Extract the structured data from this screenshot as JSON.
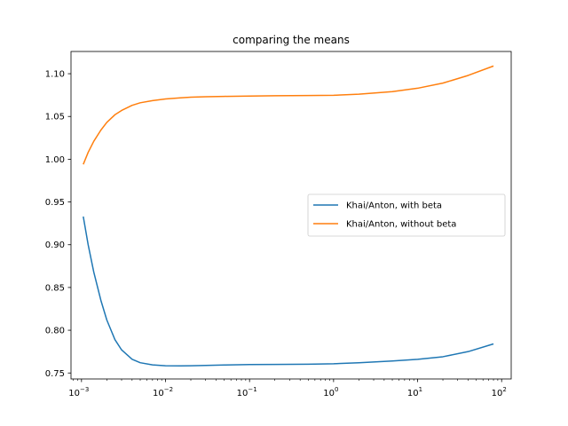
{
  "chart_data": {
    "type": "line",
    "title": "comparing the means",
    "xlabel": "",
    "ylabel": "",
    "xscale": "log",
    "xlim": [
      0.00075,
      130
    ],
    "ylim": [
      0.743,
      1.126
    ],
    "grid": false,
    "legend_position": "center-right",
    "x_ticks": [
      {
        "value": 0.001,
        "base": "10",
        "exp": "−3"
      },
      {
        "value": 0.01,
        "base": "10",
        "exp": "−2"
      },
      {
        "value": 0.1,
        "base": "10",
        "exp": "−1"
      },
      {
        "value": 1,
        "base": "10",
        "exp": "0"
      },
      {
        "value": 10,
        "base": "10",
        "exp": "1"
      },
      {
        "value": 100,
        "base": "10",
        "exp": "2"
      }
    ],
    "y_ticks": [
      {
        "value": 0.75,
        "label": "0.75"
      },
      {
        "value": 0.8,
        "label": "0.80"
      },
      {
        "value": 0.85,
        "label": "0.85"
      },
      {
        "value": 0.9,
        "label": "0.90"
      },
      {
        "value": 0.95,
        "label": "0.95"
      },
      {
        "value": 1.0,
        "label": "1.00"
      },
      {
        "value": 1.05,
        "label": "1.05"
      },
      {
        "value": 1.1,
        "label": "1.10"
      }
    ],
    "series": [
      {
        "name": "Khai/Anton, with beta",
        "color": "#1f77b4",
        "x": [
          0.00105,
          0.0012,
          0.0014,
          0.0017,
          0.002,
          0.0025,
          0.003,
          0.004,
          0.005,
          0.007,
          0.01,
          0.015,
          0.02,
          0.03,
          0.05,
          0.1,
          0.2,
          0.5,
          1,
          2,
          5,
          10,
          20,
          40,
          80
        ],
        "y": [
          0.933,
          0.9,
          0.868,
          0.835,
          0.812,
          0.789,
          0.777,
          0.766,
          0.762,
          0.7595,
          0.7585,
          0.7583,
          0.7585,
          0.7588,
          0.7593,
          0.7598,
          0.76,
          0.7603,
          0.7608,
          0.762,
          0.764,
          0.766,
          0.769,
          0.775,
          0.784
        ]
      },
      {
        "name": "Khai/Anton, without beta",
        "color": "#ff7f0e",
        "x": [
          0.00105,
          0.0012,
          0.0014,
          0.0017,
          0.002,
          0.0025,
          0.003,
          0.004,
          0.005,
          0.007,
          0.01,
          0.015,
          0.02,
          0.03,
          0.05,
          0.1,
          0.2,
          0.5,
          1,
          2,
          5,
          10,
          20,
          40,
          80
        ],
        "y": [
          0.994,
          1.008,
          1.021,
          1.034,
          1.043,
          1.052,
          1.057,
          1.063,
          1.066,
          1.0685,
          1.0705,
          1.0718,
          1.0725,
          1.073,
          1.0735,
          1.0738,
          1.0742,
          1.0745,
          1.0748,
          1.076,
          1.079,
          1.083,
          1.089,
          1.098,
          1.109
        ]
      }
    ]
  }
}
